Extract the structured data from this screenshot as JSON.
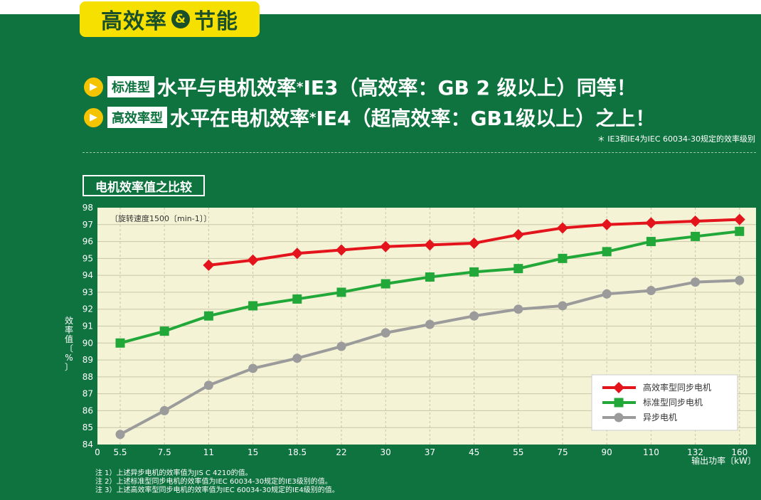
{
  "header": {
    "tag_part1": "高效率",
    "tag_amp": "&",
    "tag_part2": "节能"
  },
  "headlines": [
    {
      "badge": "标准型",
      "text_before": "水平与电机效率",
      "star": "*",
      "text_after": "IE3（高效率：GB 2 级以上）同等！"
    },
    {
      "badge": "高效率型",
      "text_before": "水平在电机效率",
      "star": "*",
      "text_after": "IE4（超高效率：GB1级以上）之上！"
    }
  ],
  "footnote": "＊ IE3和IE4为IEC 60034-30规定的效率级别",
  "chart_title": "电机效率值之比较",
  "notes": [
    "注 1）上述异步电机的效率值为JIS C 4210的值。",
    "注 2）上述标准型同步电机的效率值为IEC 60034-30规定的IE3级别的值。",
    "注 3）上述高效率型同步电机的效率值为IEC 60034-30规定的IE4级别的值。"
  ],
  "colors": {
    "panel_bg": "#0f7340",
    "plot_bg": "#f5f3d6",
    "grid": "#c8c6a6",
    "high_eff": "#e3141b",
    "standard": "#22a839",
    "async": "#9b9b9b",
    "tag_bg": "#f5e000"
  },
  "chart_data": {
    "type": "line",
    "annotation": "〔旋转速度1500〔min-1〕〕",
    "ylabel": "效率值〔%〕",
    "xlabel": "输出功率〔kW〕",
    "ylim": [
      84,
      98
    ],
    "yticks": [
      84,
      85,
      86,
      87,
      88,
      89,
      90,
      91,
      92,
      93,
      94,
      95,
      96,
      97,
      98
    ],
    "x_origin_label": "0",
    "categories": [
      "5.5",
      "7.5",
      "11",
      "15",
      "18.5",
      "22",
      "30",
      "37",
      "45",
      "55",
      "75",
      "90",
      "110",
      "132",
      "160"
    ],
    "grid": true,
    "legend_position": "bottom-right",
    "series": [
      {
        "name": "高效率型同步电机",
        "marker": "diamond",
        "color_key": "high_eff",
        "values": [
          null,
          null,
          94.6,
          94.9,
          95.3,
          95.5,
          95.7,
          95.8,
          95.9,
          96.4,
          96.8,
          97.0,
          97.1,
          97.2,
          97.3
        ]
      },
      {
        "name": "标准型同步电机",
        "marker": "square",
        "color_key": "standard",
        "values": [
          90.0,
          90.7,
          91.6,
          92.2,
          92.6,
          93.0,
          93.5,
          93.9,
          94.2,
          94.4,
          95.0,
          95.4,
          96.0,
          96.3,
          96.6
        ]
      },
      {
        "name": "异步电机",
        "marker": "circle",
        "color_key": "async",
        "values": [
          84.6,
          86.0,
          87.5,
          88.5,
          89.1,
          89.8,
          90.6,
          91.1,
          91.6,
          92.0,
          92.2,
          92.9,
          93.1,
          93.6,
          93.7
        ]
      }
    ]
  }
}
